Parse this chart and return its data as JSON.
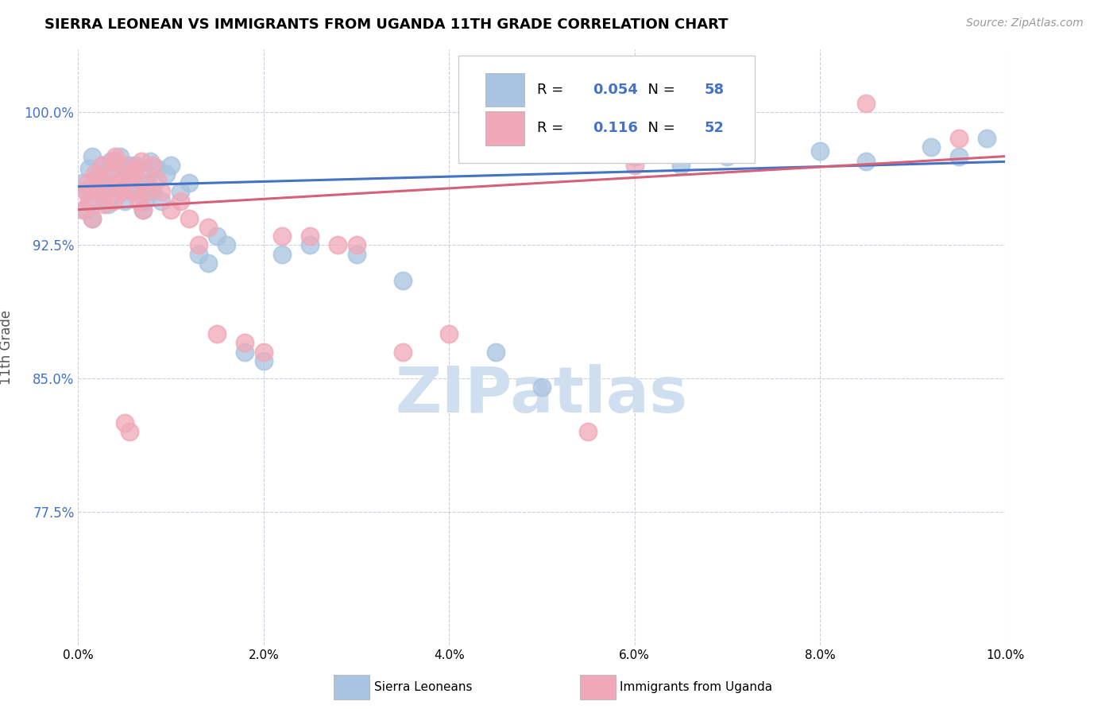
{
  "title": "SIERRA LEONEAN VS IMMIGRANTS FROM UGANDA 11TH GRADE CORRELATION CHART",
  "source_text": "Source: ZipAtlas.com",
  "ylabel": "11th Grade",
  "xlim": [
    0.0,
    10.0
  ],
  "ylim": [
    70.0,
    103.5
  ],
  "yticks": [
    77.5,
    85.0,
    92.5,
    100.0
  ],
  "ytick_labels": [
    "77.5%",
    "85.0%",
    "92.5%",
    "100.0%"
  ],
  "xticks": [
    0.0,
    2.0,
    4.0,
    6.0,
    8.0,
    10.0
  ],
  "xtick_labels": [
    "0.0%",
    "2.0%",
    "4.0%",
    "6.0%",
    "8.0%",
    "10.0%"
  ],
  "blue_color": "#a8c4e0",
  "pink_color": "#f0a8b8",
  "blue_line_color": "#4472c4",
  "pink_line_color": "#d4607a",
  "legend_color": "#4472c4",
  "blue_R": 0.054,
  "blue_N": 58,
  "pink_R": 0.116,
  "pink_N": 52,
  "watermark_color": "#d0dff0",
  "background_color": "#ffffff",
  "grid_color": "#c8d0dc",
  "title_color": "#000000",
  "source_color": "#999999",
  "ylabel_color": "#555555",
  "blue_scatter_x": [
    0.05,
    0.08,
    0.1,
    0.12,
    0.15,
    0.15,
    0.18,
    0.2,
    0.22,
    0.25,
    0.28,
    0.3,
    0.32,
    0.35,
    0.38,
    0.4,
    0.42,
    0.45,
    0.48,
    0.5,
    0.52,
    0.55,
    0.58,
    0.6,
    0.62,
    0.65,
    0.68,
    0.7,
    0.72,
    0.75,
    0.78,
    0.8,
    0.85,
    0.9,
    0.95,
    1.0,
    1.1,
    1.2,
    1.3,
    1.4,
    1.5,
    1.6,
    1.8,
    2.0,
    2.2,
    2.5,
    3.0,
    3.5,
    4.5,
    5.0,
    6.0,
    6.5,
    7.0,
    8.0,
    8.5,
    9.2,
    9.5,
    9.8
  ],
  "blue_scatter_y": [
    96.0,
    94.5,
    95.5,
    96.8,
    97.5,
    94.0,
    96.2,
    95.0,
    96.5,
    97.0,
    95.5,
    96.0,
    94.8,
    97.2,
    96.5,
    95.8,
    96.0,
    97.5,
    96.2,
    95.0,
    96.8,
    97.0,
    95.5,
    96.3,
    97.0,
    95.8,
    96.5,
    94.5,
    95.0,
    96.0,
    97.2,
    95.5,
    96.8,
    95.0,
    96.5,
    97.0,
    95.5,
    96.0,
    92.0,
    91.5,
    93.0,
    92.5,
    86.5,
    86.0,
    92.0,
    92.5,
    92.0,
    90.5,
    86.5,
    84.5,
    97.5,
    97.0,
    97.5,
    97.8,
    97.2,
    98.0,
    97.5,
    98.5
  ],
  "pink_scatter_x": [
    0.05,
    0.08,
    0.1,
    0.12,
    0.15,
    0.18,
    0.2,
    0.22,
    0.25,
    0.28,
    0.3,
    0.35,
    0.38,
    0.4,
    0.42,
    0.45,
    0.5,
    0.55,
    0.6,
    0.62,
    0.65,
    0.68,
    0.7,
    0.72,
    0.75,
    0.8,
    0.85,
    0.9,
    1.0,
    1.1,
    1.3,
    1.5,
    1.8,
    2.0,
    2.5,
    3.0,
    3.5,
    4.0,
    5.5,
    6.0,
    8.5,
    9.5,
    1.2,
    1.4,
    2.2,
    2.8,
    0.5,
    0.55,
    0.6,
    0.38,
    0.42,
    0.48
  ],
  "pink_scatter_y": [
    94.5,
    95.5,
    96.0,
    95.0,
    94.0,
    96.5,
    95.5,
    96.2,
    97.0,
    94.8,
    95.5,
    96.5,
    95.0,
    97.5,
    96.0,
    95.8,
    97.0,
    96.5,
    95.5,
    96.8,
    95.0,
    97.2,
    94.5,
    96.0,
    95.5,
    97.0,
    96.2,
    95.5,
    94.5,
    95.0,
    92.5,
    87.5,
    87.0,
    86.5,
    93.0,
    92.5,
    86.5,
    87.5,
    82.0,
    97.0,
    100.5,
    98.5,
    94.0,
    93.5,
    93.0,
    92.5,
    82.5,
    82.0,
    96.5,
    97.2,
    96.0,
    95.5
  ]
}
